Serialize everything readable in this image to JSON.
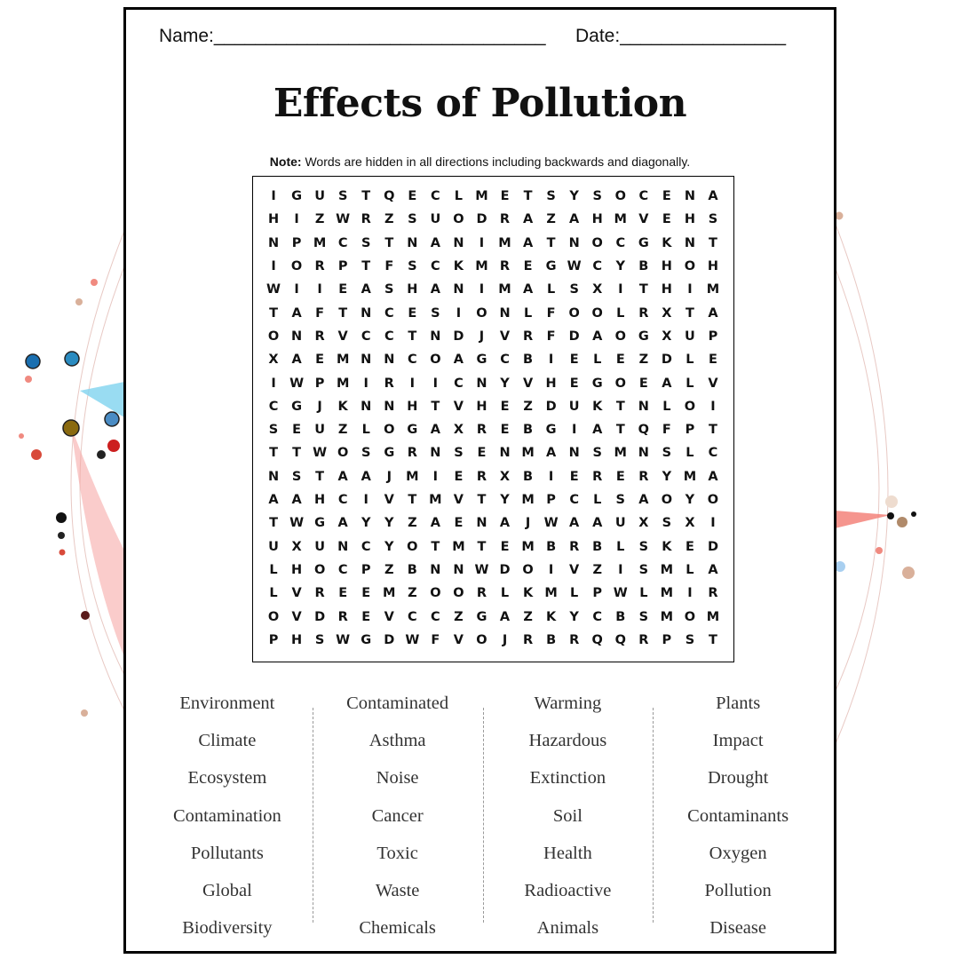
{
  "header": {
    "name_label": "Name:________________________________",
    "date_label": "Date:________________"
  },
  "title": "Effects of Pollution",
  "note": {
    "bold": "Note:",
    "text": " Words are hidden in all directions including backwards and diagonally."
  },
  "grid_rows": [
    "IGUSTQECLMETSYSOCENA",
    "HIZWRZSUODRAZAHMVEHS",
    "NPMCSTNANIMATNOCGKNT",
    "IORPTFSCKMREGWCYBHOH",
    "WIIEASHANIMALSXITHIM",
    "TAFTNCESIONLFOOLRXTA",
    "ONRVCCTNDJVRFDAOGXUP",
    "XAEMNNCOAGCBIELEZDLE",
    "IWPMIRIICNYVHEGOEALV",
    "CGJKNNHTVHEZDUKTNLOI",
    "SEUZLOGAXREBGIATQFPT",
    "TTWOSGRNSENMANSMNSLC",
    "NSTAAJMIERXBIERERYMA",
    "AAHCIVTMVTYMPCLSAOYO",
    "TWGAYYZAENAJWAAUXSXI",
    "UXUNCYOTMTEMBRBLSKED",
    "LHOCPZBNNWDOIVZISMLA",
    "LVREEMZOORLKMLPWLMIR",
    "OVDREVCCZGAZKYCBSMOM",
    "PHSWGDWFVOJRBRQQRPST"
  ],
  "word_columns": [
    [
      "Environment",
      "Climate",
      "Ecosystem",
      "Contamination",
      "Pollutants",
      "Global",
      "Biodiversity"
    ],
    [
      "Contaminated",
      "Asthma",
      "Noise",
      "Cancer",
      "Toxic",
      "Waste",
      "Chemicals"
    ],
    [
      "Warming",
      "Hazardous",
      "Extinction",
      "Soil",
      "Health",
      "Radioactive",
      "Animals"
    ],
    [
      "Plants",
      "Impact",
      "Drought",
      "Contaminants",
      "Oxygen",
      "Pollution",
      "Disease"
    ]
  ],
  "colors": {
    "border": "#000000",
    "text": "#111111",
    "word_text": "#333333",
    "divider": "#999999"
  }
}
